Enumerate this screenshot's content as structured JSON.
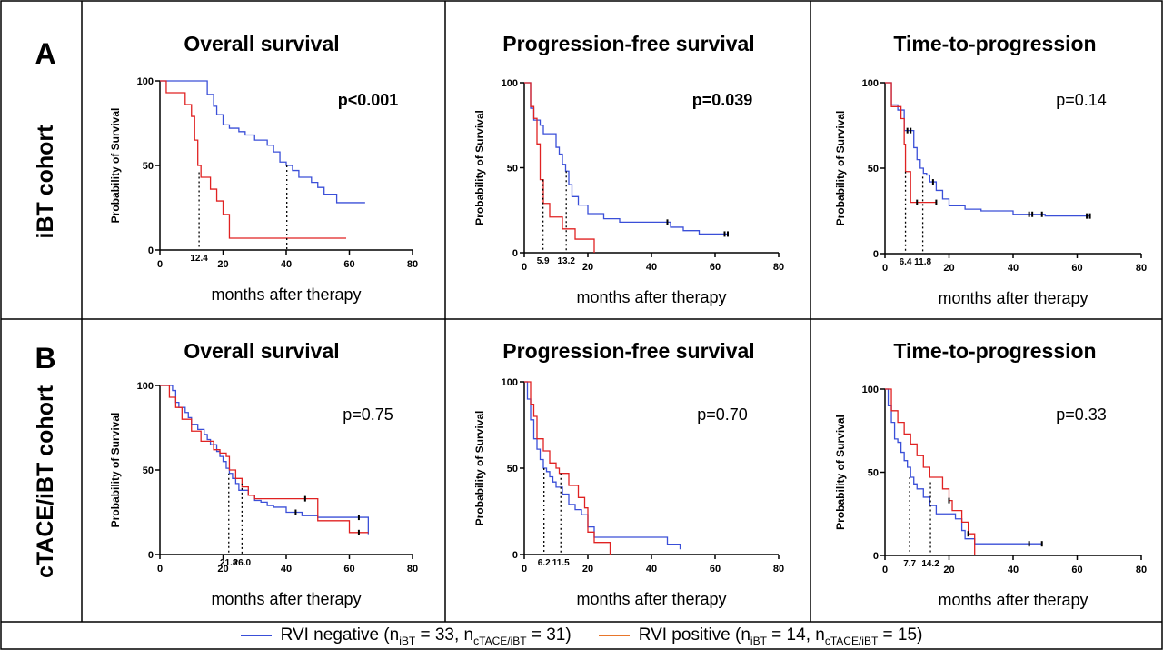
{
  "rows": [
    {
      "letter": "A",
      "label": "iBT cohort"
    },
    {
      "letter": "B",
      "label": "cTACE/iBT cohort"
    }
  ],
  "colors": {
    "rvi_negative": "#3a4fd8",
    "rvi_positive": "#e02222"
  },
  "legend": {
    "negative": {
      "label": "RVI negative (n",
      "s1": "iBT",
      "m1": " = 33, n",
      "s2": "cTACE/iBT",
      "m2": " = 31)"
    },
    "positive": {
      "label": "RVI positive (n",
      "s1": "iBT",
      "m1": " = 14, n",
      "s2": "cTACE/iBT",
      "m2": " = 15)"
    }
  },
  "chart_data": [
    {
      "type": "line",
      "step": true,
      "title": "Overall survival",
      "xlabel": "months after therapy",
      "ylabel": "Probability of Survival",
      "xlim": [
        0,
        80
      ],
      "ylim": [
        0,
        100
      ],
      "xticks": [
        0,
        20,
        40,
        60,
        80
      ],
      "yticks": [
        0,
        50,
        100
      ],
      "p_value": "p<0.001",
      "p_bold": true,
      "series": [
        {
          "color_key": "rvi_negative",
          "x": [
            0,
            13,
            15,
            17,
            18,
            20,
            22,
            25,
            27,
            30,
            34,
            36,
            38,
            40,
            42,
            44,
            48,
            50,
            52,
            56,
            65
          ],
          "y": [
            100,
            100,
            92,
            85,
            80,
            74,
            72,
            70,
            68,
            65,
            62,
            58,
            52,
            50,
            47,
            43,
            40,
            37,
            33,
            28,
            28
          ],
          "censor_x": []
        },
        {
          "color_key": "rvi_positive",
          "x": [
            0,
            2,
            8,
            10,
            11,
            12,
            13,
            16,
            18,
            20,
            22,
            59
          ],
          "y": [
            100,
            93,
            86,
            79,
            65,
            50,
            43,
            36,
            29,
            21,
            7,
            7
          ],
          "censor_x": []
        }
      ],
      "medians": [
        {
          "x": 40.2,
          "y": 50,
          "label": ""
        },
        {
          "x": 12.4,
          "y": 46,
          "label": "12.4"
        }
      ]
    },
    {
      "type": "line",
      "step": true,
      "title": "Progression-free survival",
      "xlabel": "months after therapy",
      "ylabel": "Probability of Survival",
      "xlim": [
        0,
        80
      ],
      "ylim": [
        0,
        100
      ],
      "xticks": [
        0,
        20,
        40,
        60,
        80
      ],
      "yticks": [
        0,
        50,
        100
      ],
      "p_value": "p=0.039",
      "p_bold": true,
      "series": [
        {
          "color_key": "rvi_negative",
          "x": [
            0,
            2,
            3,
            5,
            6,
            8,
            10,
            11,
            12,
            13,
            14,
            15,
            17,
            20,
            25,
            30,
            40,
            46,
            50,
            55,
            64
          ],
          "y": [
            100,
            85,
            78,
            75,
            70,
            70,
            62,
            58,
            52,
            48,
            40,
            33,
            28,
            23,
            20,
            18,
            18,
            15,
            13,
            11,
            11
          ],
          "censor_x": [
            45,
            63,
            64
          ]
        },
        {
          "color_key": "rvi_positive",
          "x": [
            0,
            2,
            3,
            4,
            5,
            6,
            8,
            12,
            16,
            20,
            22
          ],
          "y": [
            100,
            86,
            79,
            64,
            43,
            29,
            21,
            14,
            8,
            8,
            0
          ],
          "censor_x": []
        }
      ],
      "medians": [
        {
          "x": 5.9,
          "y": 43,
          "label": "5.9"
        },
        {
          "x": 13.2,
          "y": 48,
          "label": "13.2"
        }
      ]
    },
    {
      "type": "line",
      "step": true,
      "title": "Time-to-progression",
      "xlabel": "months after therapy",
      "ylabel": "Probability of Survival",
      "xlim": [
        0,
        80
      ],
      "ylim": [
        0,
        100
      ],
      "xticks": [
        0,
        20,
        40,
        60,
        80
      ],
      "yticks": [
        0,
        50,
        100
      ],
      "p_value": "p=0.14",
      "p_bold": false,
      "series": [
        {
          "color_key": "rvi_negative",
          "x": [
            0,
            2,
            4,
            6,
            7,
            9,
            10,
            11,
            12,
            13,
            14,
            16,
            18,
            20,
            25,
            30,
            40,
            50,
            64
          ],
          "y": [
            100,
            87,
            84,
            72,
            72,
            62,
            55,
            50,
            47,
            46,
            42,
            37,
            32,
            28,
            26,
            25,
            23,
            22,
            22
          ],
          "censor_x": [
            7,
            8,
            15,
            45,
            46,
            49,
            63,
            64
          ]
        },
        {
          "color_key": "rvi_positive",
          "x": [
            0,
            2,
            5,
            6,
            6.4,
            8,
            12,
            16
          ],
          "y": [
            100,
            86,
            79,
            64,
            48,
            30,
            30,
            30
          ],
          "censor_x": [
            10,
            16
          ]
        }
      ],
      "medians": [
        {
          "x": 6.4,
          "y": 48,
          "label": "6.4"
        },
        {
          "x": 11.8,
          "y": 45,
          "label": "11.8"
        }
      ]
    },
    {
      "type": "line",
      "step": true,
      "title": "Overall survival",
      "xlabel": "months after therapy",
      "ylabel": "Probability of Survival",
      "xlim": [
        0,
        80
      ],
      "ylim": [
        0,
        100
      ],
      "xticks": [
        0,
        20,
        40,
        60,
        80
      ],
      "yticks": [
        0,
        50,
        100
      ],
      "p_value": "p=0.75",
      "p_bold": false,
      "series": [
        {
          "color_key": "rvi_negative",
          "x": [
            0,
            4,
            5,
            6,
            8,
            9,
            10,
            12,
            14,
            15,
            16,
            18,
            19,
            20,
            21,
            22,
            23,
            24,
            25,
            28,
            30,
            32,
            34,
            36,
            40,
            45,
            50,
            55,
            60,
            66
          ],
          "y": [
            100,
            97,
            90,
            87,
            84,
            81,
            77,
            74,
            71,
            68,
            65,
            61,
            58,
            55,
            51,
            48,
            45,
            42,
            38,
            35,
            32,
            31,
            29,
            28,
            25,
            23,
            22,
            22,
            22,
            12
          ],
          "censor_x": [
            43,
            63
          ]
        },
        {
          "color_key": "rvi_positive",
          "x": [
            0,
            3,
            5,
            7,
            10,
            13,
            15,
            17,
            19,
            21,
            22,
            24,
            26,
            28,
            30,
            33,
            35,
            38,
            45,
            48,
            50,
            55,
            60,
            66
          ],
          "y": [
            100,
            93,
            87,
            80,
            73,
            67,
            67,
            62,
            60,
            58,
            50,
            45,
            40,
            35,
            33,
            33,
            33,
            33,
            33,
            33,
            20,
            20,
            13,
            13
          ],
          "censor_x": [
            46,
            63
          ]
        }
      ],
      "medians": [
        {
          "x": 21.8,
          "y": 48,
          "label": "21.8"
        },
        {
          "x": 26.0,
          "y": 42,
          "label": "26.0"
        }
      ]
    },
    {
      "type": "line",
      "step": true,
      "title": "Progression-free survival",
      "xlabel": "months after therapy",
      "ylabel": "Probability of Survival",
      "xlim": [
        0,
        80
      ],
      "ylim": [
        0,
        100
      ],
      "xticks": [
        0,
        20,
        40,
        60,
        80
      ],
      "yticks": [
        0,
        50,
        100
      ],
      "p_value": "p=0.70",
      "p_bold": false,
      "series": [
        {
          "color_key": "rvi_negative",
          "x": [
            0,
            1,
            2,
            3,
            4,
            5,
            6,
            7,
            8,
            9,
            10,
            12,
            14,
            16,
            18,
            20,
            22,
            25,
            30,
            40,
            45,
            49
          ],
          "y": [
            100,
            90,
            78,
            67,
            61,
            55,
            50,
            48,
            45,
            42,
            39,
            35,
            29,
            26,
            23,
            16,
            10,
            10,
            10,
            10,
            6,
            3
          ],
          "censor_x": []
        },
        {
          "color_key": "rvi_positive",
          "x": [
            0,
            2,
            3,
            4,
            6,
            8,
            10,
            11,
            12,
            14,
            17,
            19,
            20,
            22,
            25,
            27
          ],
          "y": [
            100,
            87,
            80,
            67,
            60,
            53,
            50,
            47,
            47,
            40,
            33,
            27,
            13,
            7,
            7,
            0
          ],
          "censor_x": []
        }
      ],
      "medians": [
        {
          "x": 6.2,
          "y": 50,
          "label": "6.2"
        },
        {
          "x": 11.5,
          "y": 47,
          "label": "11.5"
        }
      ]
    },
    {
      "type": "line",
      "step": true,
      "title": "Time-to-progression",
      "xlabel": "months after therapy",
      "ylabel": "Probability of Survival",
      "xlim": [
        0,
        80
      ],
      "ylim": [
        0,
        100
      ],
      "xticks": [
        0,
        20,
        40,
        60,
        80
      ],
      "yticks": [
        0,
        50,
        100
      ],
      "p_value": "p=0.33",
      "p_bold": false,
      "series": [
        {
          "color_key": "rvi_negative",
          "x": [
            0,
            1,
            2,
            3,
            4,
            5,
            6,
            7,
            8,
            9,
            10,
            12,
            14,
            16,
            18,
            20,
            22,
            24,
            25,
            28,
            30,
            49
          ],
          "y": [
            100,
            90,
            80,
            70,
            68,
            62,
            57,
            53,
            47,
            43,
            40,
            35,
            30,
            25,
            25,
            25,
            22,
            15,
            10,
            7,
            7,
            7
          ],
          "censor_x": [
            45,
            49
          ]
        },
        {
          "color_key": "rvi_positive",
          "x": [
            0,
            2,
            4,
            6,
            8,
            10,
            12,
            14,
            16,
            18,
            20,
            21,
            24,
            26,
            27,
            28
          ],
          "y": [
            100,
            87,
            80,
            73,
            67,
            60,
            53,
            47,
            47,
            40,
            33,
            27,
            20,
            13,
            13,
            0
          ],
          "censor_x": [
            20,
            26
          ]
        }
      ],
      "medians": [
        {
          "x": 7.7,
          "y": 47,
          "label": "7.7"
        },
        {
          "x": 14.2,
          "y": 44,
          "label": "14.2"
        }
      ]
    }
  ]
}
